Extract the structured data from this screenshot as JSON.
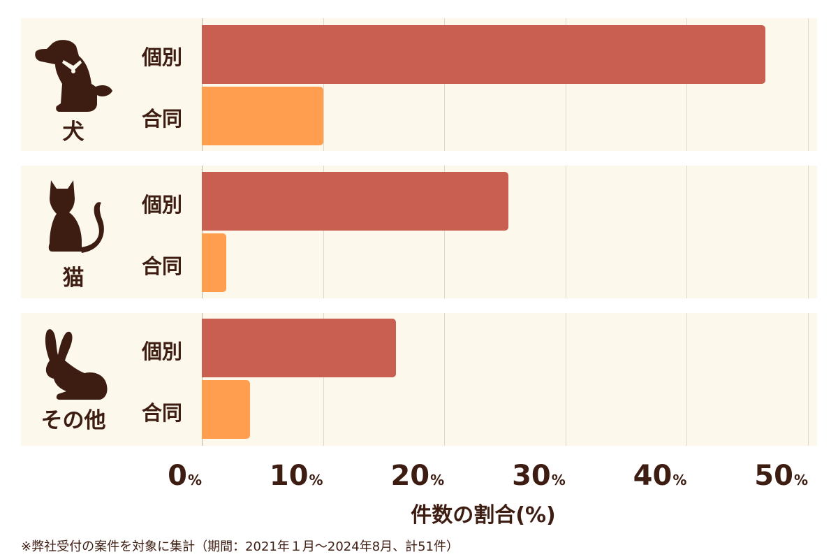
{
  "chart_data": {
    "type": "bar",
    "orientation": "horizontal",
    "groups": [
      {
        "label": "犬",
        "icon": "dog-icon",
        "bars": [
          {
            "name": "個別",
            "value": 46.5
          },
          {
            "name": "合同",
            "value": 10.0
          }
        ]
      },
      {
        "label": "猫",
        "icon": "cat-icon",
        "bars": [
          {
            "name": "個別",
            "value": 25.3
          },
          {
            "name": "合同",
            "value": 2.0
          }
        ]
      },
      {
        "label": "その他",
        "icon": "rabbit-icon",
        "bars": [
          {
            "name": "個別",
            "value": 16.0
          },
          {
            "name": "合同",
            "value": 4.0
          }
        ]
      }
    ],
    "series_colors": {
      "個別": "#c95f50",
      "合同": "#fe9e4e"
    },
    "xlabel": "件数の割合(%)",
    "xlim": [
      0,
      50
    ],
    "xticks": [
      {
        "value": 0,
        "label": "0",
        "unit": "%"
      },
      {
        "value": 10,
        "label": "10",
        "unit": "%"
      },
      {
        "value": 20,
        "label": "20",
        "unit": "%"
      },
      {
        "value": 30,
        "label": "30",
        "unit": "%"
      },
      {
        "value": 40,
        "label": "40",
        "unit": "%"
      },
      {
        "value": 50,
        "label": "50",
        "unit": "%"
      }
    ],
    "grid": true,
    "note": "※弊社受付の案件を対象に集計（期間：2021年１月～2024年8月、計51件）"
  },
  "colors": {
    "text": "#3d1c12",
    "panel_bg": "#fdf8ec",
    "grid": "#ddd8cd"
  }
}
